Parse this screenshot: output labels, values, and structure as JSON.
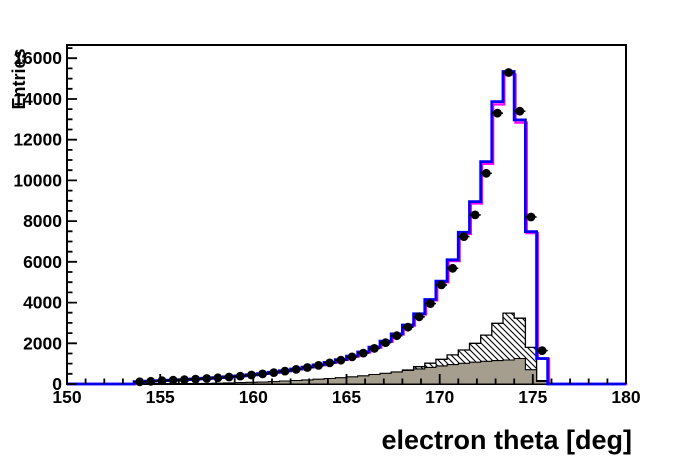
{
  "figure": {
    "x_title": "electron theta [deg]",
    "y_title": "Entries",
    "background": "#ffffff"
  },
  "colors": {
    "frame": "#000000",
    "text": "#000000",
    "total_mc_line": "#0000ee",
    "total_mc_underlay_line": "#ff00ff",
    "hatched_outline": "#000000",
    "hatched_fill": "#ffffff",
    "solid_fill": "#a59d8e",
    "solid_outline": "#000000",
    "marker": "#000000"
  },
  "axes": {
    "x": {
      "min": 150,
      "max": 180,
      "major_ticks": [
        150,
        155,
        160,
        165,
        170,
        175,
        180
      ],
      "tick_labels": [
        "150",
        "155",
        "160",
        "165",
        "170",
        "175",
        "180"
      ],
      "minor_step": 1
    },
    "y": {
      "min": 0,
      "max": 16650,
      "major_ticks": [
        0,
        2000,
        4000,
        6000,
        8000,
        10000,
        12000,
        14000,
        16000
      ],
      "tick_labels": [
        "0",
        "2000",
        "4000",
        "6000",
        "8000",
        "10000",
        "12000",
        "14000",
        "16000"
      ],
      "minor_step": 500
    }
  },
  "chart_data": {
    "type": "bar",
    "subtype": "overlaid-step-histograms-with-data-points",
    "title": "",
    "xlabel": "electron theta [deg]",
    "ylabel": "Entries",
    "xlim": [
      150,
      180
    ],
    "ylim": [
      0,
      16650
    ],
    "grid": false,
    "legend": "none",
    "bin_width": 0.6,
    "x_bin_centers": [
      153.9,
      154.5,
      155.1,
      155.7,
      156.3,
      156.9,
      157.5,
      158.1,
      158.7,
      159.3,
      159.9,
      160.5,
      161.1,
      161.7,
      162.3,
      162.9,
      163.5,
      164.1,
      164.7,
      165.3,
      165.9,
      166.5,
      167.1,
      167.7,
      168.3,
      168.9,
      169.5,
      170.1,
      170.7,
      171.3,
      171.9,
      172.5,
      173.1,
      173.7,
      174.3,
      174.9,
      175.5
    ],
    "series": [
      {
        "name": "data-points",
        "style": "black filled circle markers with horizontal bin-width error bars",
        "values": [
          110,
          135,
          160,
          185,
          210,
          240,
          270,
          305,
          345,
          390,
          440,
          495,
          560,
          635,
          715,
          810,
          915,
          1035,
          1170,
          1330,
          1520,
          1750,
          2030,
          2370,
          2790,
          3300,
          3950,
          4865,
          5685,
          7240,
          8305,
          10350,
          13300,
          15300,
          13400,
          8200,
          1640
        ]
      },
      {
        "name": "total-mc-blue",
        "style": "blue step outline",
        "values": [
          115,
          140,
          165,
          190,
          215,
          245,
          280,
          315,
          355,
          400,
          450,
          510,
          575,
          650,
          735,
          830,
          940,
          1060,
          1200,
          1370,
          1570,
          1810,
          2100,
          2460,
          2900,
          3450,
          4150,
          5050,
          6100,
          7450,
          8960,
          10925,
          13870,
          15350,
          12970,
          7485,
          1250
        ]
      },
      {
        "name": "total-mc-magenta-underlay",
        "style": "magenta step outline just beneath the blue line",
        "values": [
          114,
          139,
          163,
          188,
          213,
          243,
          277,
          312,
          351,
          396,
          446,
          505,
          569,
          644,
          728,
          822,
          931,
          1049,
          1188,
          1356,
          1554,
          1792,
          2079,
          2435,
          2871,
          3416,
          4109,
          5000,
          6039,
          7376,
          8870,
          10816,
          13733,
          15196,
          12841,
          7410,
          1238
        ]
      },
      {
        "name": "background-hatched",
        "style": "white fill with black diagonal hatching, black step outline",
        "values": [
          0,
          0,
          0,
          0,
          0,
          0,
          0,
          0,
          0,
          10,
          20,
          30,
          45,
          60,
          80,
          105,
          130,
          165,
          205,
          255,
          315,
          385,
          460,
          555,
          690,
          850,
          1020,
          1215,
          1430,
          1670,
          2000,
          2400,
          2980,
          3480,
          3230,
          1800,
          160
        ]
      },
      {
        "name": "background-solid-gray",
        "style": "solid gray-taupe filled step histogram, black outline",
        "values": [
          0,
          0,
          5,
          10,
          15,
          20,
          30,
          40,
          55,
          70,
          85,
          100,
          120,
          145,
          170,
          200,
          235,
          270,
          310,
          355,
          405,
          465,
          525,
          595,
          665,
          740,
          815,
          890,
          955,
          1015,
          1070,
          1115,
          1150,
          1180,
          1250,
          700,
          130
        ]
      }
    ]
  }
}
